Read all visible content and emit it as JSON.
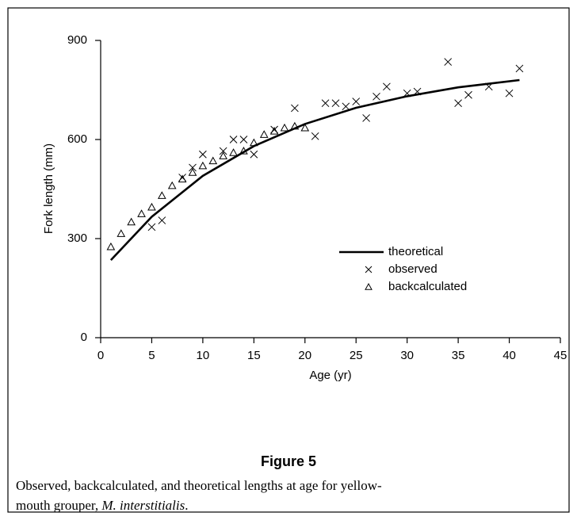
{
  "chart_data": {
    "type": "scatter",
    "xlabel": "Age (yr)",
    "ylabel": "Fork length (mm)",
    "xlim": [
      0,
      45
    ],
    "xticks": [
      0,
      5,
      10,
      15,
      20,
      25,
      30,
      35,
      40,
      45
    ],
    "ylim": [
      0,
      900
    ],
    "yticks": [
      0,
      300,
      600,
      900
    ],
    "legend": "center-right",
    "series": [
      {
        "name": "theoretical",
        "marker": "line",
        "color": "#000000",
        "x": [
          1,
          5,
          10,
          15,
          20,
          25,
          30,
          35,
          41
        ],
        "values": [
          235,
          366,
          490,
          580,
          647,
          696,
          731,
          758,
          780
        ]
      },
      {
        "name": "observed",
        "marker": "x",
        "color": "#000000",
        "x": [
          5,
          6,
          8,
          9,
          10,
          12,
          13,
          14,
          15,
          17,
          19,
          21,
          22,
          23,
          24,
          25,
          26,
          27,
          28,
          30,
          31,
          34,
          35,
          36,
          38,
          40,
          41
        ],
        "values": [
          335,
          355,
          485,
          515,
          555,
          565,
          600,
          600,
          555,
          630,
          695,
          610,
          710,
          710,
          700,
          715,
          665,
          730,
          760,
          740,
          745,
          835,
          710,
          735,
          760,
          740,
          815
        ]
      },
      {
        "name": "backcalculated",
        "marker": "triangle",
        "color": "#000000",
        "x": [
          1,
          2,
          3,
          4,
          5,
          6,
          7,
          8,
          9,
          10,
          11,
          12,
          13,
          14,
          15,
          16,
          17,
          18,
          19,
          20
        ],
        "values": [
          275,
          315,
          350,
          375,
          395,
          430,
          460,
          480,
          500,
          520,
          535,
          550,
          560,
          565,
          590,
          615,
          625,
          635,
          640,
          635
        ]
      }
    ]
  },
  "figure": {
    "label": "Figure 5",
    "caption_line1": "Observed, backcalculated, and theoretical lengths at age for yellow-",
    "caption_line2_start": "mouth grouper, ",
    "caption_species": "M. interstitialis",
    "caption_end": "."
  }
}
